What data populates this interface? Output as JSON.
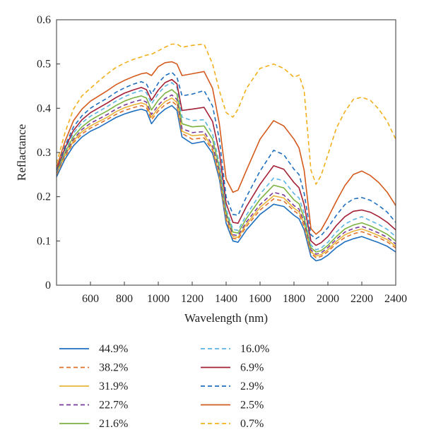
{
  "chart_data": {
    "type": "line",
    "xlabel": "Wavelength (nm)",
    "ylabel": "Reflactance",
    "xlim": [
      400,
      2400
    ],
    "ylim": [
      0,
      0.6
    ],
    "xticks": [
      600,
      800,
      1000,
      1200,
      1400,
      1600,
      1800,
      2000,
      2200,
      2400
    ],
    "xtick_labels": [
      "600",
      "800",
      "1000",
      "1200",
      "1400",
      "1600",
      "1800",
      "2000",
      "2200",
      "2400"
    ],
    "yticks": [
      0,
      0.1,
      0.2,
      0.3,
      0.4,
      0.5,
      0.6
    ],
    "ytick_labels": [
      "0",
      "0.1",
      "0.2",
      "0.3",
      "0.4",
      "0.5",
      "0.6"
    ],
    "grid": false,
    "legend_position": "bottom",
    "x": [
      400,
      450,
      500,
      550,
      600,
      650,
      700,
      750,
      800,
      850,
      900,
      930,
      960,
      1000,
      1040,
      1080,
      1110,
      1140,
      1200,
      1270,
      1320,
      1360,
      1400,
      1440,
      1470,
      1520,
      1600,
      1680,
      1740,
      1800,
      1830,
      1860,
      1900,
      1930,
      1960,
      2000,
      2050,
      2100,
      2150,
      2200,
      2250,
      2300,
      2350,
      2400
    ],
    "series": [
      {
        "name": "44.9%",
        "color": "#1f6fbf",
        "dash": "solid",
        "values": [
          0.245,
          0.285,
          0.315,
          0.335,
          0.348,
          0.357,
          0.368,
          0.379,
          0.387,
          0.393,
          0.398,
          0.394,
          0.365,
          0.385,
          0.398,
          0.406,
          0.395,
          0.335,
          0.32,
          0.325,
          0.298,
          0.24,
          0.14,
          0.1,
          0.097,
          0.125,
          0.16,
          0.183,
          0.178,
          0.158,
          0.15,
          0.125,
          0.065,
          0.055,
          0.058,
          0.068,
          0.085,
          0.098,
          0.105,
          0.11,
          0.103,
          0.096,
          0.088,
          0.075
        ]
      },
      {
        "name": "38.2%",
        "color": "#e0702a",
        "dash": "dashed",
        "values": [
          0.25,
          0.29,
          0.322,
          0.342,
          0.355,
          0.365,
          0.375,
          0.386,
          0.395,
          0.401,
          0.406,
          0.402,
          0.374,
          0.394,
          0.408,
          0.416,
          0.406,
          0.343,
          0.33,
          0.333,
          0.305,
          0.246,
          0.148,
          0.106,
          0.104,
          0.133,
          0.17,
          0.195,
          0.19,
          0.168,
          0.16,
          0.133,
          0.072,
          0.062,
          0.065,
          0.076,
          0.094,
          0.108,
          0.116,
          0.121,
          0.114,
          0.107,
          0.098,
          0.084
        ]
      },
      {
        "name": "31.9%",
        "color": "#e8b43a",
        "dash": "solid",
        "values": [
          0.252,
          0.293,
          0.326,
          0.347,
          0.36,
          0.37,
          0.38,
          0.392,
          0.401,
          0.407,
          0.412,
          0.408,
          0.38,
          0.4,
          0.415,
          0.423,
          0.413,
          0.348,
          0.338,
          0.34,
          0.31,
          0.25,
          0.153,
          0.11,
          0.108,
          0.138,
          0.176,
          0.202,
          0.197,
          0.174,
          0.166,
          0.138,
          0.076,
          0.066,
          0.069,
          0.08,
          0.099,
          0.114,
          0.122,
          0.127,
          0.12,
          0.112,
          0.103,
          0.088
        ]
      },
      {
        "name": "22.7%",
        "color": "#7a3a9a",
        "dash": "dashed",
        "values": [
          0.254,
          0.296,
          0.33,
          0.352,
          0.366,
          0.376,
          0.386,
          0.398,
          0.407,
          0.414,
          0.419,
          0.414,
          0.386,
          0.407,
          0.422,
          0.43,
          0.42,
          0.354,
          0.345,
          0.347,
          0.316,
          0.256,
          0.158,
          0.114,
          0.112,
          0.143,
          0.182,
          0.21,
          0.204,
          0.18,
          0.172,
          0.143,
          0.08,
          0.07,
          0.073,
          0.085,
          0.104,
          0.12,
          0.128,
          0.133,
          0.126,
          0.118,
          0.108,
          0.093
        ]
      },
      {
        "name": "21.6%",
        "color": "#7cb342",
        "dash": "solid",
        "values": [
          0.256,
          0.3,
          0.336,
          0.358,
          0.373,
          0.384,
          0.394,
          0.406,
          0.416,
          0.423,
          0.428,
          0.423,
          0.396,
          0.418,
          0.434,
          0.442,
          0.432,
          0.365,
          0.358,
          0.36,
          0.33,
          0.266,
          0.165,
          0.12,
          0.118,
          0.151,
          0.194,
          0.226,
          0.22,
          0.193,
          0.184,
          0.152,
          0.085,
          0.075,
          0.078,
          0.09,
          0.11,
          0.127,
          0.136,
          0.141,
          0.134,
          0.125,
          0.115,
          0.1
        ]
      },
      {
        "name": "16.0%",
        "color": "#5ab4e5",
        "dash": "dashed",
        "values": [
          0.258,
          0.305,
          0.344,
          0.367,
          0.382,
          0.393,
          0.404,
          0.416,
          0.426,
          0.434,
          0.44,
          0.435,
          0.41,
          0.433,
          0.45,
          0.458,
          0.447,
          0.38,
          0.372,
          0.374,
          0.342,
          0.276,
          0.172,
          0.126,
          0.124,
          0.159,
          0.206,
          0.242,
          0.236,
          0.207,
          0.197,
          0.163,
          0.091,
          0.08,
          0.084,
          0.097,
          0.12,
          0.138,
          0.148,
          0.155,
          0.146,
          0.137,
          0.126,
          0.11
        ]
      },
      {
        "name": "6.9%",
        "color": "#a31f34",
        "dash": "solid",
        "values": [
          0.26,
          0.31,
          0.35,
          0.374,
          0.39,
          0.401,
          0.412,
          0.424,
          0.434,
          0.441,
          0.447,
          0.442,
          0.418,
          0.441,
          0.458,
          0.465,
          0.455,
          0.395,
          0.398,
          0.402,
          0.37,
          0.3,
          0.185,
          0.142,
          0.14,
          0.178,
          0.228,
          0.27,
          0.262,
          0.232,
          0.22,
          0.182,
          0.1,
          0.09,
          0.096,
          0.11,
          0.135,
          0.155,
          0.167,
          0.17,
          0.165,
          0.155,
          0.142,
          0.125
        ]
      },
      {
        "name": "2.9%",
        "color": "#1f6fbf",
        "dash": "dashed",
        "values": [
          0.262,
          0.315,
          0.358,
          0.383,
          0.4,
          0.412,
          0.423,
          0.436,
          0.446,
          0.454,
          0.46,
          0.455,
          0.432,
          0.457,
          0.474,
          0.481,
          0.47,
          0.428,
          0.432,
          0.44,
          0.405,
          0.33,
          0.2,
          0.16,
          0.158,
          0.2,
          0.258,
          0.305,
          0.295,
          0.262,
          0.25,
          0.208,
          0.114,
          0.105,
          0.112,
          0.13,
          0.158,
          0.182,
          0.195,
          0.198,
          0.192,
          0.18,
          0.165,
          0.142
        ]
      },
      {
        "name": "2.5%",
        "color": "#d35a1c",
        "dash": "solid",
        "values": [
          0.265,
          0.325,
          0.372,
          0.398,
          0.416,
          0.428,
          0.44,
          0.453,
          0.463,
          0.471,
          0.478,
          0.48,
          0.474,
          0.494,
          0.503,
          0.505,
          0.5,
          0.474,
          0.478,
          0.483,
          0.445,
          0.365,
          0.24,
          0.21,
          0.215,
          0.26,
          0.33,
          0.372,
          0.36,
          0.33,
          0.31,
          0.26,
          0.128,
          0.115,
          0.125,
          0.152,
          0.19,
          0.225,
          0.25,
          0.258,
          0.248,
          0.232,
          0.21,
          0.18
        ]
      },
      {
        "name": "0.7%",
        "color": "#f2b01e",
        "dash": "dashed",
        "values": [
          0.275,
          0.345,
          0.398,
          0.428,
          0.445,
          0.462,
          0.478,
          0.492,
          0.502,
          0.51,
          0.516,
          0.52,
          0.522,
          0.53,
          0.538,
          0.545,
          0.545,
          0.538,
          0.542,
          0.545,
          0.5,
          0.44,
          0.39,
          0.38,
          0.398,
          0.445,
          0.49,
          0.5,
          0.49,
          0.47,
          0.475,
          0.44,
          0.26,
          0.228,
          0.248,
          0.295,
          0.355,
          0.392,
          0.42,
          0.425,
          0.418,
          0.398,
          0.37,
          0.33
        ]
      }
    ]
  }
}
